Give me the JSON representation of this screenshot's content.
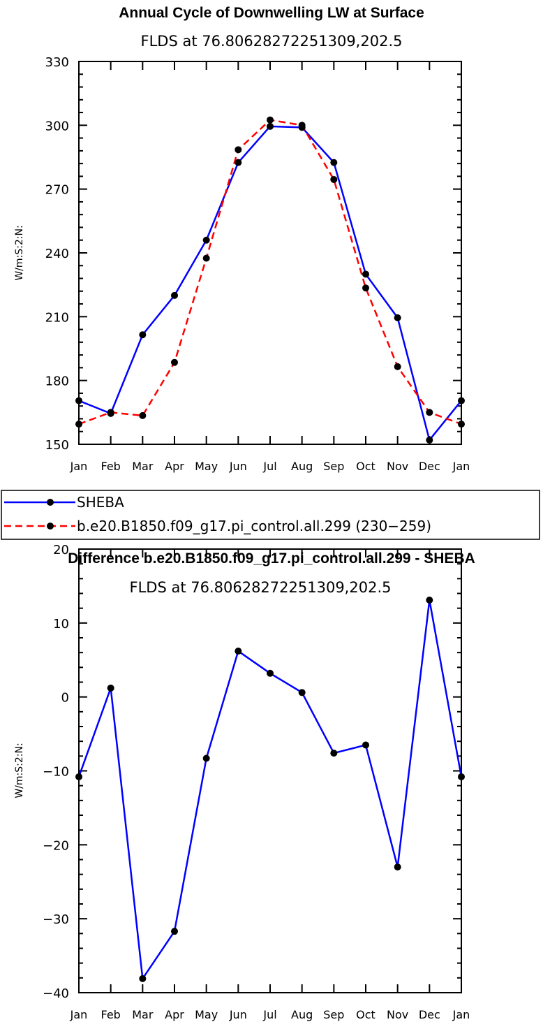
{
  "chart_data": [
    {
      "type": "line",
      "title": "Annual Cycle of Downwelling LW at Surface",
      "subtitle": "FLDS at 76.80628272251309,202.5",
      "ylabel": "W/m:S:2:N:",
      "xlabel": "",
      "categories": [
        "Jan",
        "Feb",
        "Mar",
        "Apr",
        "May",
        "Jun",
        "Jul",
        "Aug",
        "Sep",
        "Oct",
        "Nov",
        "Dec",
        "Jan"
      ],
      "ylim": [
        150,
        330
      ],
      "yticks": [
        150,
        180,
        210,
        240,
        270,
        300,
        330
      ],
      "series": [
        {
          "name": "SHEBA",
          "color": "#0000ff",
          "dashed": false,
          "values": [
            170.5,
            164.5,
            201.5,
            220,
            246,
            282.5,
            299.5,
            299,
            282.5,
            230,
            209.5,
            152,
            170.5
          ]
        },
        {
          "name": "b.e20.B1850.f09_g17.pi_control.all.299 (230−259)",
          "color": "#ff0000",
          "dashed": true,
          "values": [
            159.5,
            165,
            163.5,
            188.5,
            237.5,
            288.5,
            302.5,
            300,
            274.5,
            223.5,
            186.5,
            165,
            159.5
          ]
        }
      ],
      "legend": "below"
    },
    {
      "type": "line",
      "title": "Difference b.e20.B1850.f09_g17.pi_control.all.299 - SHEBA",
      "subtitle": "FLDS at 76.80628272251309,202.5",
      "ylabel": "W/m:S:2:N:",
      "xlabel": "",
      "categories": [
        "Jan",
        "Feb",
        "Mar",
        "Apr",
        "May",
        "Jun",
        "Jul",
        "Aug",
        "Sep",
        "Oct",
        "Nov",
        "Dec",
        "Jan"
      ],
      "ylim": [
        -40,
        20
      ],
      "yticks": [
        -40,
        -30,
        -20,
        -10,
        0,
        10,
        20
      ],
      "ytick_labels": [
        "−40",
        "−30",
        "−20",
        "−10",
        "0",
        "10",
        "20"
      ],
      "series": [
        {
          "color": "#0000ff",
          "dashed": false,
          "values": [
            -10.8,
            1.2,
            -38.1,
            -31.7,
            -8.3,
            6.2,
            3.2,
            0.6,
            -7.6,
            -6.5,
            -23.0,
            13.1,
            -10.8
          ]
        }
      ]
    }
  ]
}
